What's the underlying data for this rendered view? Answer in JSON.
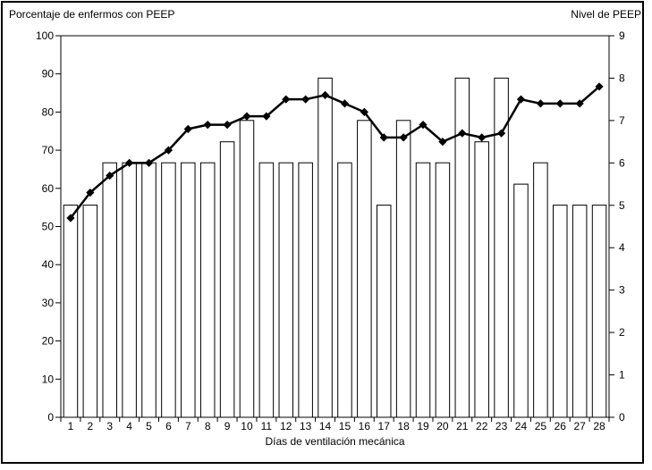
{
  "frame": {
    "background_color": "#ffffff",
    "border_color": "#000000",
    "bar_fill_color": "#ffffff",
    "line_color": "#000000"
  },
  "titles": {
    "left_axis_title": "Porcentaje de enfermos con PEEP",
    "right_axis_title": "Nivel de PEEP",
    "x_axis_title": "Días de ventilación mecánica"
  },
  "chart_data": {
    "type": "combo",
    "subtypes": [
      "bar",
      "line"
    ],
    "grid": false,
    "legend": "none",
    "x_axis": {
      "label": "Días de ventilación mecánica",
      "categories": [
        "1",
        "2",
        "3",
        "4",
        "5",
        "6",
        "7",
        "8",
        "9",
        "10",
        "11",
        "12",
        "13",
        "14",
        "15",
        "16",
        "17",
        "18",
        "19",
        "20",
        "21",
        "22",
        "23",
        "24",
        "25",
        "26",
        "27",
        "28"
      ]
    },
    "left_y_axis": {
      "label": "Porcentaje de enfermos con PEEP",
      "min": 0,
      "max": 100,
      "step": 10,
      "tick_labels": [
        "0",
        "10",
        "20",
        "30",
        "40",
        "50",
        "60",
        "70",
        "80",
        "90",
        "100"
      ]
    },
    "right_y_axis": {
      "label": "Nivel de PEEP",
      "min": 0,
      "max": 9,
      "step": 1,
      "tick_labels": [
        "0",
        "1",
        "2",
        "3",
        "4",
        "5",
        "6",
        "7",
        "8",
        "9"
      ]
    },
    "series": [
      {
        "name": "Porcentaje de enfermos con PEEP",
        "type": "bar",
        "axis": "left",
        "fill": "#ffffff",
        "stroke": "#000000",
        "values": [
          55.6,
          55.6,
          66.7,
          66.7,
          66.7,
          66.7,
          66.7,
          66.7,
          72.2,
          77.8,
          66.7,
          66.7,
          66.7,
          88.9,
          66.7,
          77.8,
          55.6,
          77.8,
          66.7,
          66.7,
          88.9,
          72.2,
          88.9,
          61.1,
          66.7,
          55.6,
          55.6,
          55.6
        ]
      },
      {
        "name": "Nivel de PEEP",
        "type": "line",
        "axis": "right",
        "marker": "diamond",
        "color": "#000000",
        "values": [
          4.7,
          5.3,
          5.7,
          6.0,
          6.0,
          6.3,
          6.8,
          6.9,
          6.9,
          7.1,
          7.1,
          7.5,
          7.5,
          7.6,
          7.4,
          7.2,
          6.6,
          6.6,
          6.9,
          6.5,
          6.7,
          6.6,
          6.7,
          7.5,
          7.4,
          7.4,
          7.4,
          7.8
        ]
      }
    ]
  }
}
